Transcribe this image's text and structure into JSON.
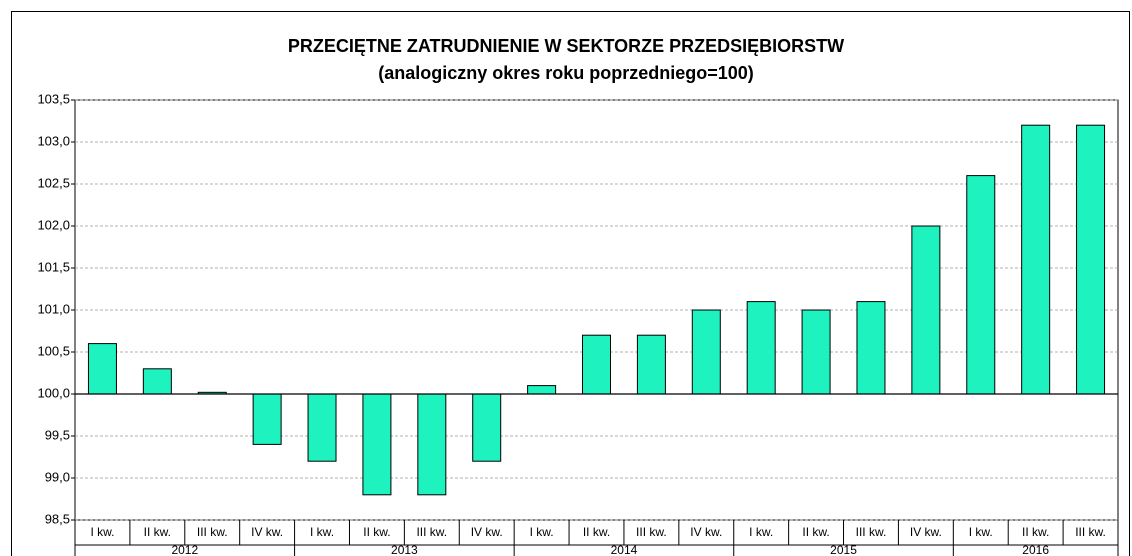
{
  "chart_data": {
    "type": "bar",
    "title": "PRZECIĘTNE ZATRUDNIENIE W SEKTORZE PRZEDSIĘBIORSTW",
    "subtitle": "(analogiczny okres roku poprzedniego=100)",
    "color": "#1ef2bf",
    "baseline": 100,
    "groups": [
      {
        "name": "2012",
        "categories": [
          "I kw.",
          "II kw.",
          "III kw.",
          "IV kw."
        ],
        "values": [
          100.6,
          100.3,
          100.02,
          99.4
        ]
      },
      {
        "name": "2013",
        "categories": [
          "I kw.",
          "II kw.",
          "III kw.",
          "IV kw."
        ],
        "values": [
          99.2,
          98.8,
          98.8,
          99.2
        ]
      },
      {
        "name": "2014",
        "categories": [
          "I kw.",
          "II kw.",
          "III kw.",
          "IV kw."
        ],
        "values": [
          100.1,
          100.7,
          100.7,
          101.0
        ]
      },
      {
        "name": "2015",
        "categories": [
          "I kw.",
          "II kw.",
          "III kw.",
          "IV kw."
        ],
        "values": [
          101.1,
          101.0,
          101.1,
          102.0
        ]
      },
      {
        "name": "2016",
        "categories": [
          "I kw.",
          "II kw.",
          "III kw."
        ],
        "values": [
          102.6,
          103.2,
          103.2
        ]
      }
    ],
    "ylim": [
      98.5,
      103.5
    ],
    "yticks": [
      {
        "value": 98.5,
        "label": "98,5"
      },
      {
        "value": 99,
        "label": "99,0"
      },
      {
        "value": 99.5,
        "label": "99,5"
      },
      {
        "value": 100,
        "label": "100,0"
      },
      {
        "value": 100.5,
        "label": "100,5"
      },
      {
        "value": 101,
        "label": "101,0"
      },
      {
        "value": 101.5,
        "label": "101,5"
      },
      {
        "value": 102,
        "label": "102,0"
      },
      {
        "value": 102.5,
        "label": "102,5"
      },
      {
        "value": 103,
        "label": "103,0"
      },
      {
        "value": 103.5,
        "label": "103,5"
      }
    ],
    "grid": true
  }
}
